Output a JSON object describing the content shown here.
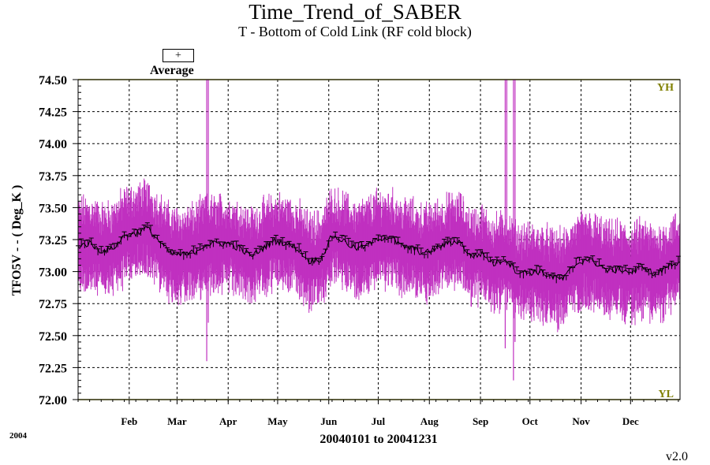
{
  "title": "Time_Trend_of_SABER",
  "subtitle": "T - Bottom of Cold Link (RF cold block)",
  "legend": {
    "symbol": "+",
    "label": "Average"
  },
  "year_label": "2004",
  "version": "v2.0",
  "chart_data": {
    "type": "line",
    "title": "Time_Trend_of_SABER",
    "subtitle": "T - Bottom of Cold Link (RF cold block)",
    "xlabel": "20040101 to 20041231",
    "ylabel": "TFO5V  - - ( Deg_K )",
    "xlim": [
      "2004-01-01",
      "2004-12-31"
    ],
    "ylim": [
      72.0,
      74.5
    ],
    "y_ticks": [
      "72.00",
      "72.25",
      "72.50",
      "72.75",
      "73.00",
      "73.25",
      "73.50",
      "73.75",
      "74.00",
      "74.25",
      "74.50"
    ],
    "x_ticks": [
      {
        "label": "Feb",
        "date": "2004-02-01"
      },
      {
        "label": "Mar",
        "date": "2004-03-01"
      },
      {
        "label": "Apr",
        "date": "2004-04-01"
      },
      {
        "label": "May",
        "date": "2004-05-01"
      },
      {
        "label": "Jun",
        "date": "2004-06-01"
      },
      {
        "label": "Jul",
        "date": "2004-07-01"
      },
      {
        "label": "Aug",
        "date": "2004-08-01"
      },
      {
        "label": "Sep",
        "date": "2004-09-01"
      },
      {
        "label": "Oct",
        "date": "2004-10-01"
      },
      {
        "label": "Nov",
        "date": "2004-11-01"
      },
      {
        "label": "Dec",
        "date": "2004-12-01"
      }
    ],
    "limits": [
      {
        "label": "YH",
        "value": 74.5
      },
      {
        "label": "YL",
        "value": 72.0
      }
    ],
    "grid": true,
    "legend_position": "top-left",
    "colors": {
      "range": "#c030c0",
      "average": "#000000",
      "limit": "#808000"
    },
    "series": [
      {
        "name": "Average",
        "points": [
          [
            "2004-01-01",
            73.2
          ],
          [
            "2004-01-08",
            73.22
          ],
          [
            "2004-01-15",
            73.16
          ],
          [
            "2004-01-22",
            73.18
          ],
          [
            "2004-01-29",
            73.28
          ],
          [
            "2004-02-05",
            73.3
          ],
          [
            "2004-02-12",
            73.34
          ],
          [
            "2004-02-19",
            73.24
          ],
          [
            "2004-02-26",
            73.14
          ],
          [
            "2004-03-04",
            73.13
          ],
          [
            "2004-03-11",
            73.15
          ],
          [
            "2004-03-18",
            73.21
          ],
          [
            "2004-03-25",
            73.22
          ],
          [
            "2004-04-01",
            73.22
          ],
          [
            "2004-04-08",
            73.18
          ],
          [
            "2004-04-15",
            73.12
          ],
          [
            "2004-04-22",
            73.18
          ],
          [
            "2004-04-29",
            73.24
          ],
          [
            "2004-05-06",
            73.22
          ],
          [
            "2004-05-13",
            73.18
          ],
          [
            "2004-05-20",
            73.08
          ],
          [
            "2004-05-27",
            73.1
          ],
          [
            "2004-06-03",
            73.28
          ],
          [
            "2004-06-10",
            73.24
          ],
          [
            "2004-06-17",
            73.18
          ],
          [
            "2004-06-24",
            73.2
          ],
          [
            "2004-07-01",
            73.26
          ],
          [
            "2004-07-08",
            73.27
          ],
          [
            "2004-07-15",
            73.2
          ],
          [
            "2004-07-22",
            73.18
          ],
          [
            "2004-07-29",
            73.14
          ],
          [
            "2004-08-05",
            73.18
          ],
          [
            "2004-08-12",
            73.22
          ],
          [
            "2004-08-19",
            73.24
          ],
          [
            "2004-08-26",
            73.12
          ],
          [
            "2004-09-02",
            73.14
          ],
          [
            "2004-09-09",
            73.06
          ],
          [
            "2004-09-16",
            73.1
          ],
          [
            "2004-09-23",
            73.0
          ],
          [
            "2004-09-30",
            72.99
          ],
          [
            "2004-10-07",
            73.0
          ],
          [
            "2004-10-14",
            72.96
          ],
          [
            "2004-10-21",
            72.94
          ],
          [
            "2004-10-28",
            73.05
          ],
          [
            "2004-11-04",
            73.1
          ],
          [
            "2004-11-11",
            73.06
          ],
          [
            "2004-11-18",
            73.0
          ],
          [
            "2004-11-25",
            73.02
          ],
          [
            "2004-12-02",
            72.99
          ],
          [
            "2004-12-09",
            73.04
          ],
          [
            "2004-12-16",
            72.97
          ],
          [
            "2004-12-23",
            73.04
          ],
          [
            "2004-12-31",
            73.08
          ]
        ]
      }
    ],
    "range_spread": 0.32,
    "spikes": [
      {
        "date": "2004-03-19",
        "low": 72.3,
        "high": 74.5
      },
      {
        "date": "2004-09-16",
        "low": 72.4,
        "high": 74.5
      },
      {
        "date": "2004-09-21",
        "low": 72.15,
        "high": 74.5
      }
    ]
  }
}
